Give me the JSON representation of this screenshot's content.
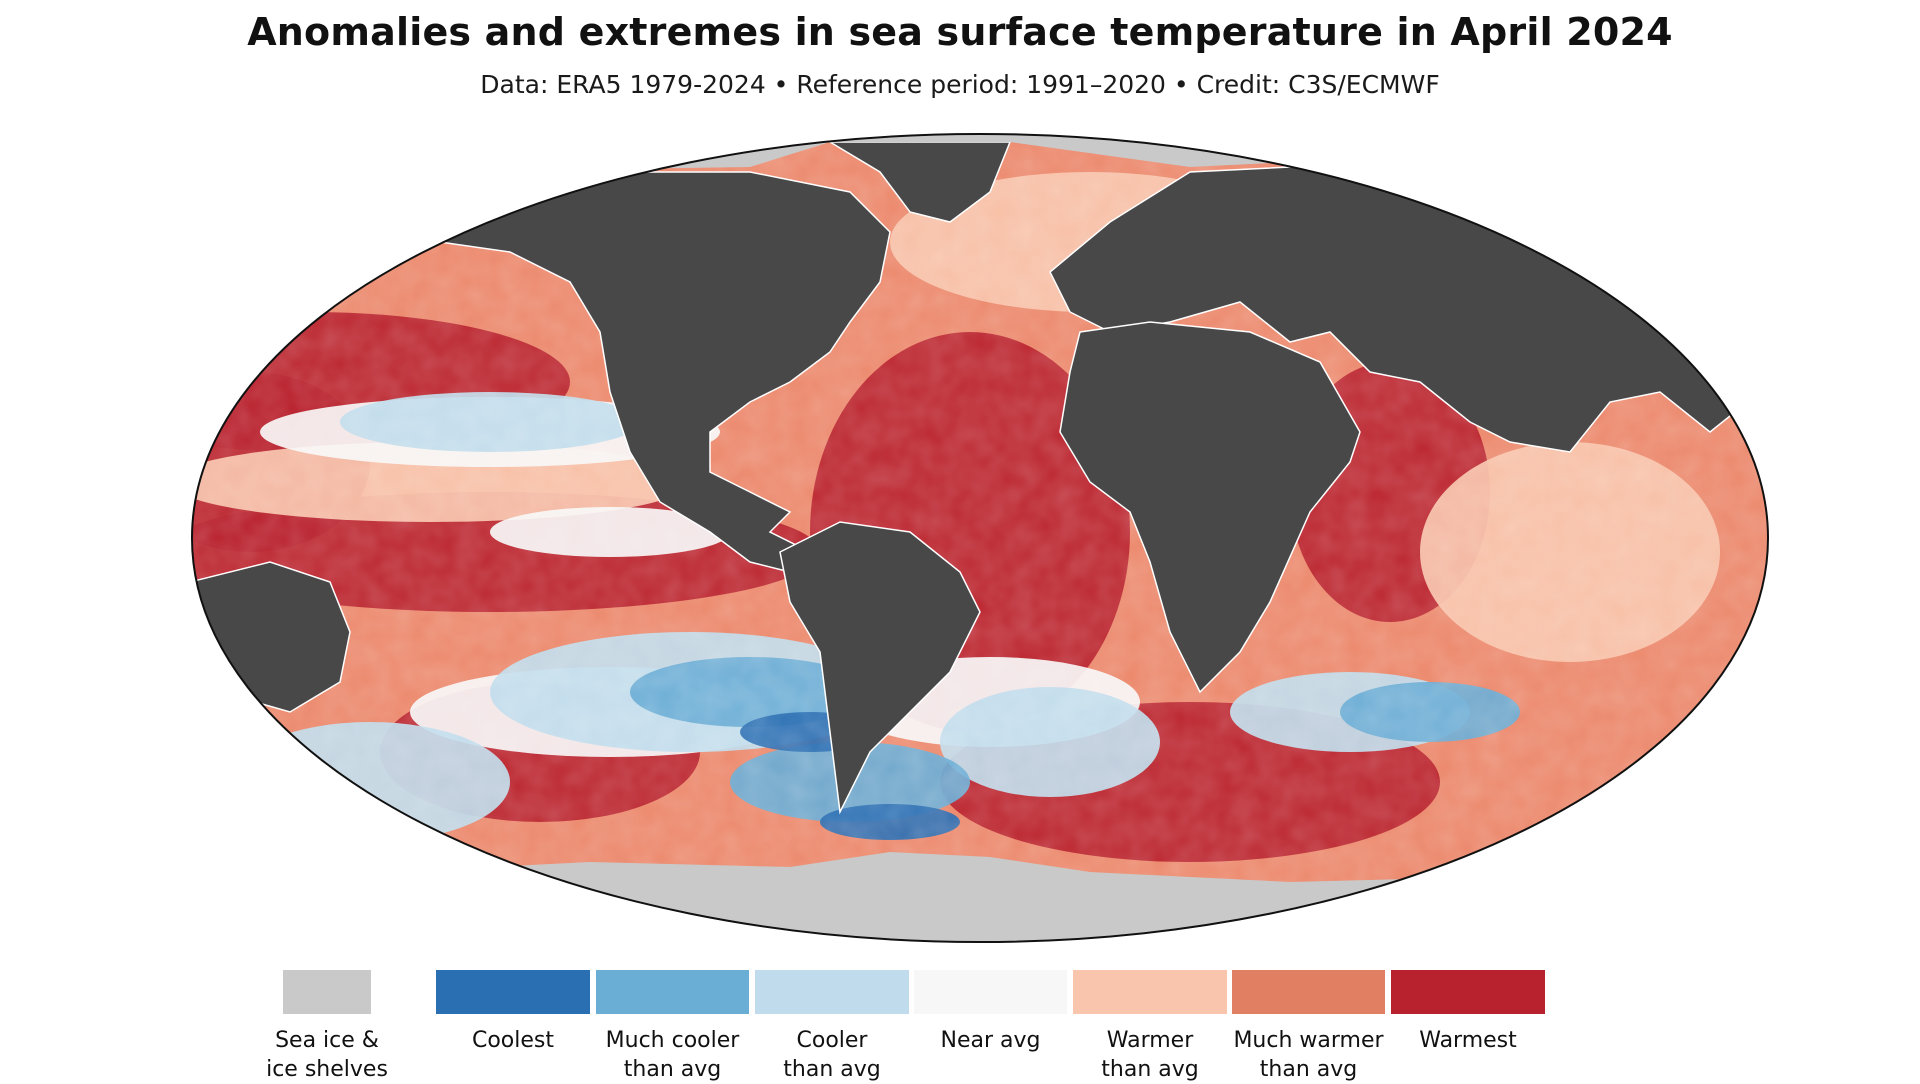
{
  "title": "Anomalies and extremes in sea surface temperature in April 2024",
  "subtitle": "Data: ERA5 1979-2024 • Reference period: 1991–2020 • Credit: C3S/ECMWF",
  "colors": {
    "ocean_fill": "#ec8a6e",
    "land": "#484848",
    "sea_ice": "#c9c9c9"
  },
  "legend": {
    "items": [
      {
        "id": "sea-ice",
        "label_line1": "Sea ice &",
        "label_line2": "ice shelves",
        "color": "#c9c9c9"
      },
      {
        "id": "coolest",
        "label_line1": "Coolest",
        "label_line2": "",
        "color": "#2b6fb3"
      },
      {
        "id": "much-cooler",
        "label_line1": "Much cooler",
        "label_line2": "than avg",
        "color": "#6aadd5"
      },
      {
        "id": "cooler",
        "label_line1": "Cooler",
        "label_line2": "than avg",
        "color": "#c0dcec"
      },
      {
        "id": "near-avg",
        "label_line1": "Near avg",
        "label_line2": "",
        "color": "#f7f7f7"
      },
      {
        "id": "warmer",
        "label_line1": "Warmer",
        "label_line2": "than avg",
        "color": "#f9c5ad"
      },
      {
        "id": "much-warmer",
        "label_line1": "Much warmer",
        "label_line2": "than avg",
        "color": "#e17f63"
      },
      {
        "id": "warmest",
        "label_line1": "Warmest",
        "label_line2": "",
        "color": "#b8222e"
      }
    ]
  }
}
